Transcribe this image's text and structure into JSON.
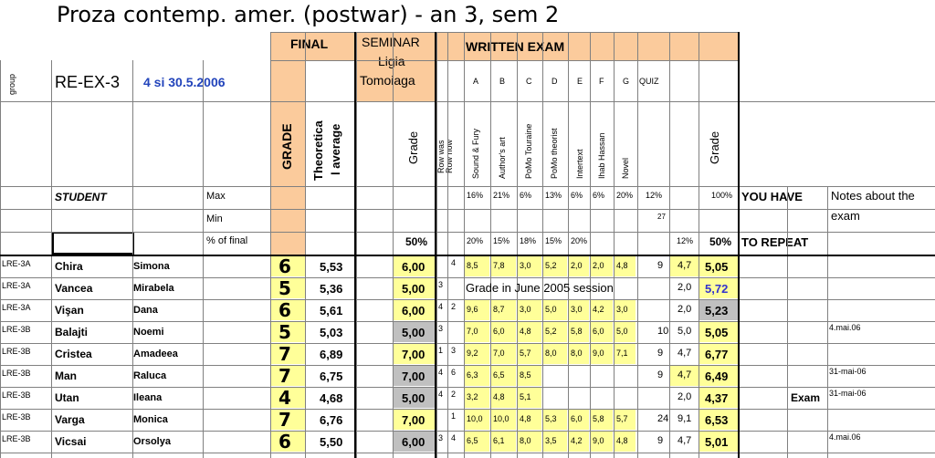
{
  "title": "Proza contemp. amer. (postwar) - an 3, sem 2",
  "headers": {
    "final": "FINAL",
    "seminar": [
      "SEMINAR",
      "Ligia",
      "Tomoiaga"
    ],
    "written": "WRITTEN EXAM",
    "group_label": "group",
    "grade_col": "GRADE",
    "theor_avg": [
      "Theoretica",
      "l average"
    ],
    "grade_small": "Grade",
    "row_was": [
      "Row was",
      "Row now"
    ],
    "letters": [
      "A",
      "B",
      "C",
      "D",
      "E",
      "F",
      "G"
    ],
    "quiz": "QUIZ",
    "topics": [
      "Sound & Fury",
      "Author's art",
      "PoMo Touraine",
      "PoMo theorist",
      "Intertext",
      "Ihab Hassan",
      "Novel"
    ],
    "grade_written": "Grade",
    "group_name": "RE-EX-3",
    "exam_date": "4 si 30.5.2006",
    "student_label": "STUDENT",
    "max_label": "Max",
    "min_label": "Min",
    "pct_label": "% of final",
    "you_have": "YOU HAVE",
    "to_repeat": "TO REPEAT",
    "notes": [
      "Notes about the",
      "exam"
    ],
    "seminar_pct": "50%",
    "max_pcts": [
      "16%",
      "21%",
      "6%",
      "13%",
      "6%",
      "6%",
      "20%"
    ],
    "quiz_max": "12%",
    "grade_max": "100%",
    "quiz_min": "27",
    "final_pcts": [
      "20%",
      "15%",
      "18%",
      "15%",
      "20%"
    ],
    "quiz_final": "12%",
    "written_final": "50%"
  },
  "rows": [
    {
      "group": "LRE-3A",
      "last": "Chira",
      "first": "Simona",
      "grade": "6",
      "avg": "5,53",
      "sem": "6,00",
      "sem_gray": false,
      "was": "",
      "now": "4",
      "scores": [
        "8,5",
        "7,8",
        "3,0",
        "5,2",
        "2,0",
        "2,0",
        "4,8"
      ],
      "quiz": "9",
      "qw": "4,7",
      "wgrade": "5,05",
      "wcolor": "#000",
      "repeat": "",
      "note": ""
    },
    {
      "group": "LRE-3A",
      "last": "Vancea",
      "first": "Mirabela",
      "grade": "5",
      "avg": "5,36",
      "sem": "5,00",
      "sem_gray": false,
      "was": "3",
      "now": "",
      "special": "Grade in June 2005 session",
      "quiz": "",
      "qw": "2,0",
      "wgrade": "5,72",
      "wcolor": "#3333CC",
      "repeat": "",
      "note": ""
    },
    {
      "group": "LRE-3A",
      "last": "Vişan",
      "first": "Dana",
      "grade": "6",
      "avg": "5,61",
      "sem": "6,00",
      "sem_gray": false,
      "was": "4",
      "now": "2",
      "scores": [
        "9,6",
        "8,7",
        "3,0",
        "5,0",
        "3,0",
        "4,2",
        "3,0"
      ],
      "quiz": "",
      "qw": "2,0",
      "wgrade": "5,23",
      "wcolor": "#000",
      "wgray": true,
      "repeat": "",
      "note": ""
    },
    {
      "group": "LRE-3B",
      "last": "Balajti",
      "first": "Noemi",
      "grade": "5",
      "avg": "5,03",
      "sem": "5,00",
      "sem_gray": true,
      "was": "3",
      "now": "",
      "scores": [
        "7,0",
        "6,0",
        "4,8",
        "5,2",
        "5,8",
        "6,0",
        "5,0"
      ],
      "quiz": "10",
      "qw": "5,0",
      "wgrade": "5,05",
      "wcolor": "#000",
      "repeat": "",
      "note": "4.mai.06"
    },
    {
      "group": "LRE-3B",
      "last": "Cristea",
      "first": "Amadeea",
      "grade": "7",
      "avg": "6,89",
      "sem": "7,00",
      "sem_gray": false,
      "was": "1",
      "now": "3",
      "scores": [
        "9,2",
        "7,0",
        "5,7",
        "8,0",
        "8,0",
        "9,0",
        "7,1"
      ],
      "quiz": "9",
      "qw": "4,7",
      "wgrade": "6,77",
      "wcolor": "#000",
      "repeat": "",
      "note": ""
    },
    {
      "group": "LRE-3B",
      "last": "Man",
      "first": "Raluca",
      "grade": "7",
      "avg": "6,75",
      "sem": "7,00",
      "sem_gray": true,
      "was": "4",
      "now": "6",
      "scores": [
        "6,3",
        "6,5",
        "8,5",
        "",
        "",
        "",
        ""
      ],
      "quiz": "9",
      "qw": "4,7",
      "wgrade": "6,49",
      "wcolor": "#000",
      "repeat": "",
      "note": "31-mai-06"
    },
    {
      "group": "LRE-3B",
      "last": "Utan",
      "first": "Ileana",
      "grade": "4",
      "avg": "4,68",
      "sem": "5,00",
      "sem_gray": true,
      "was": "4",
      "now": "2",
      "scores": [
        "3,2",
        "4,8",
        "5,1",
        "",
        "",
        "",
        ""
      ],
      "quiz": "",
      "qw": "2,0",
      "wgrade": "4,37",
      "wcolor": "#000",
      "repeat": "Exam",
      "note": "31-mai-06"
    },
    {
      "group": "LRE-3B",
      "last": "Varga",
      "first": "Monica",
      "grade": "7",
      "avg": "6,76",
      "sem": "7,00",
      "sem_gray": false,
      "was": "",
      "now": "1",
      "scores": [
        "10,0",
        "10,0",
        "4,8",
        "5,3",
        "6,0",
        "5,8",
        "5,7"
      ],
      "quiz": "24",
      "qw": "9,1",
      "wgrade": "6,53",
      "wcolor": "#000",
      "repeat": "",
      "note": ""
    },
    {
      "group": "LRE-3B",
      "last": "Vicsai",
      "first": "Orsolya",
      "grade": "6",
      "avg": "5,50",
      "sem": "6,00",
      "sem_gray": true,
      "was": "3",
      "now": "4",
      "scores": [
        "6,5",
        "6,1",
        "8,0",
        "3,5",
        "4,2",
        "9,0",
        "4,8"
      ],
      "quiz": "9",
      "qw": "4,7",
      "wgrade": "5,01",
      "wcolor": "#000",
      "repeat": "",
      "note": "4.mai.06"
    }
  ]
}
